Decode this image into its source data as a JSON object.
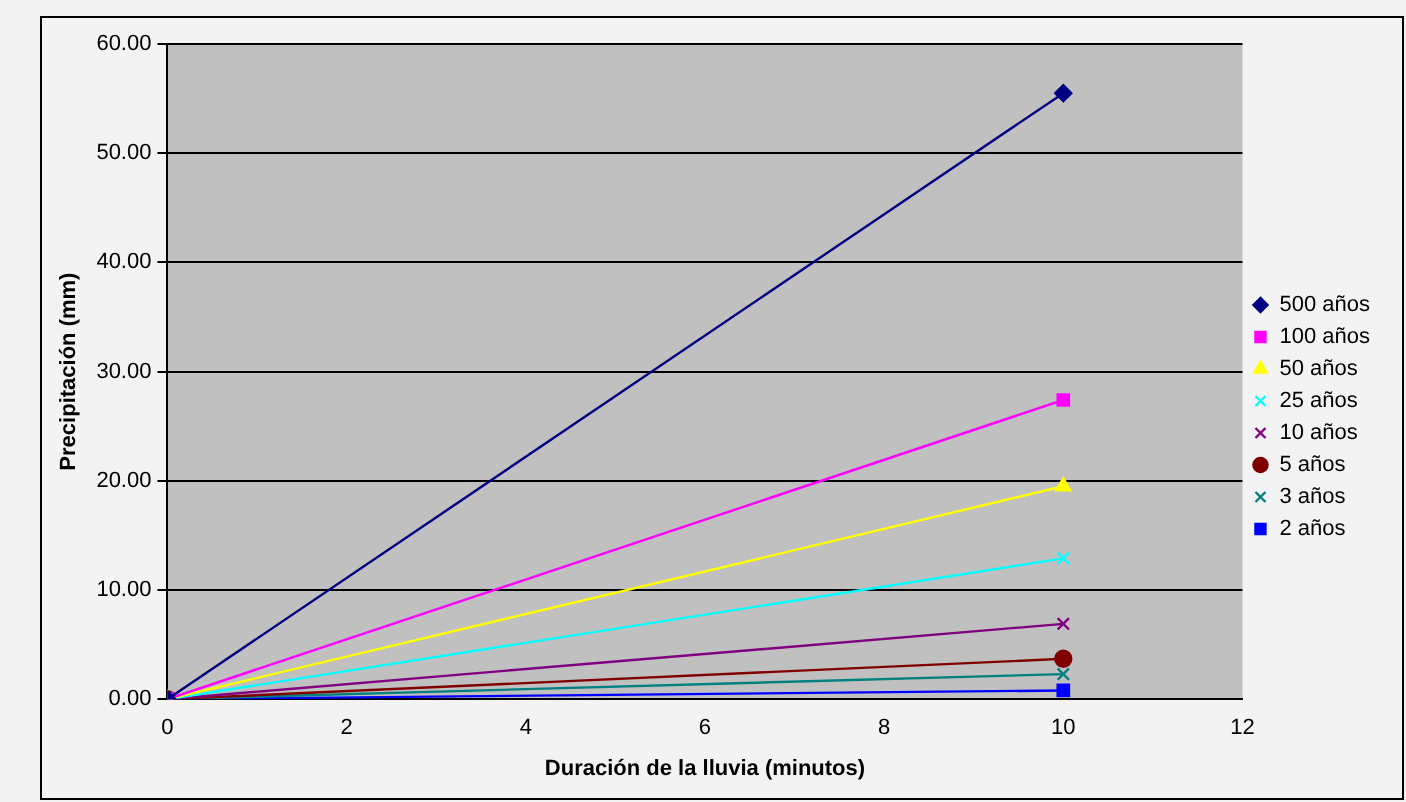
{
  "chart_data": {
    "type": "line",
    "xlabel": "Duración de la lluvia (minutos)",
    "ylabel": "Precipitación (mm)",
    "x": [
      0,
      10
    ],
    "xlim": [
      0,
      12
    ],
    "xticks": [
      0,
      2,
      4,
      6,
      8,
      10,
      12
    ],
    "ylim": [
      0,
      60
    ],
    "yticks": [
      {
        "value": 0,
        "label": "0.00"
      },
      {
        "value": 10,
        "label": "10.00"
      },
      {
        "value": 20,
        "label": "20.00"
      },
      {
        "value": 30,
        "label": "30.00"
      },
      {
        "value": 40,
        "label": "40.00"
      },
      {
        "value": 50,
        "label": "50.00"
      },
      {
        "value": 60,
        "label": "60.00"
      }
    ],
    "grid": "y",
    "legend": "right",
    "line_style": "solid",
    "series": [
      {
        "name": "500 años",
        "color": "#000080",
        "marker": "diamond",
        "values": [
          0,
          55.5
        ]
      },
      {
        "name": "100 años",
        "color": "#ff00ff",
        "marker": "square",
        "values": [
          0,
          27.4
        ]
      },
      {
        "name": "50 años",
        "color": "#ffff00",
        "marker": "triangle",
        "values": [
          0,
          19.5
        ]
      },
      {
        "name": "25 años",
        "color": "#00ffff",
        "marker": "cross",
        "values": [
          0,
          12.9
        ]
      },
      {
        "name": "10 años",
        "color": "#800080",
        "marker": "cross",
        "values": [
          0,
          6.9
        ]
      },
      {
        "name": "5 años",
        "color": "#800000",
        "marker": "circle",
        "values": [
          0,
          3.7
        ]
      },
      {
        "name": "3 años",
        "color": "#008080",
        "marker": "cross",
        "values": [
          0,
          2.3
        ]
      },
      {
        "name": "2 años",
        "color": "#0000ff",
        "marker": "square",
        "values": [
          0,
          0.8
        ]
      }
    ]
  }
}
